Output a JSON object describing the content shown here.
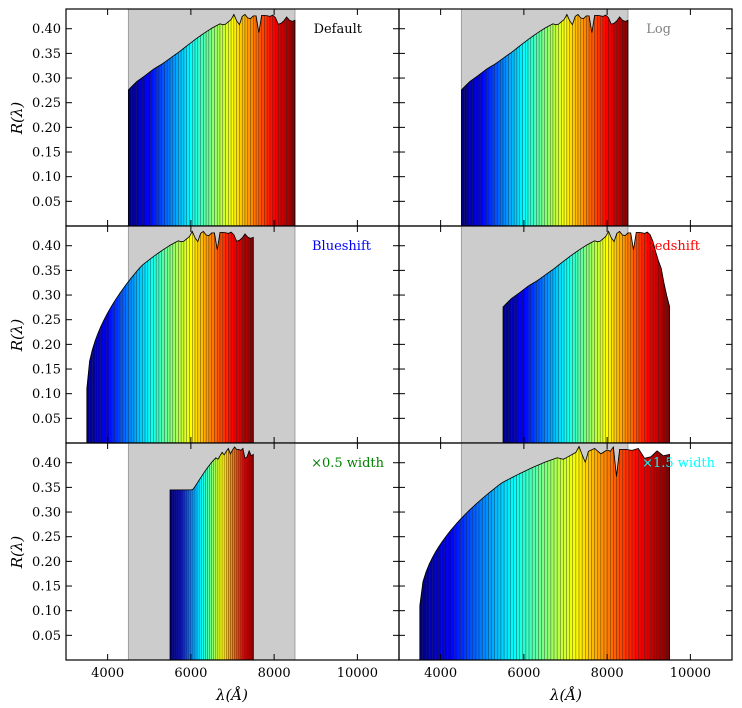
{
  "chart_data": {
    "type": "area",
    "layout": "3x2 grid of panels sharing x and y axes",
    "xlabel": "λ(Å)",
    "ylabel": "R(λ)",
    "xlim": [
      3000,
      11000
    ],
    "ylim": [
      0.0,
      0.44
    ],
    "xticks": [
      4000,
      6000,
      8000,
      10000
    ],
    "xtick_labels": [
      "4000",
      "6000",
      "8000",
      "10000"
    ],
    "yticks": [
      0.05,
      0.1,
      0.15,
      0.2,
      0.25,
      0.3,
      0.35,
      0.4
    ],
    "ytick_labels": [
      "0.05",
      "0.10",
      "0.15",
      "0.20",
      "0.25",
      "0.30",
      "0.35",
      "0.40"
    ],
    "grid": false,
    "colormap": "jet (blue at short wavelength to red at long wavelength)",
    "shaded_band_color": "#cccccc",
    "base_curve": {
      "description": "Reference response curve R(λ) for the default filter, sampled in Å",
      "x": [
        4500,
        4700,
        4900,
        5100,
        5300,
        5500,
        5700,
        5900,
        6100,
        6300,
        6500,
        6700,
        6800,
        6900,
        7000,
        7050,
        7100,
        7150,
        7200,
        7300,
        7400,
        7500,
        7550,
        7600,
        7650,
        7700,
        7800,
        7900,
        8000,
        8100,
        8200,
        8300,
        8400,
        8500
      ],
      "y": [
        0.276,
        0.293,
        0.305,
        0.318,
        0.328,
        0.34,
        0.352,
        0.365,
        0.378,
        0.39,
        0.401,
        0.41,
        0.407,
        0.414,
        0.421,
        0.433,
        0.416,
        0.401,
        0.423,
        0.429,
        0.418,
        0.426,
        0.423,
        0.432,
        0.372,
        0.427,
        0.427,
        0.425,
        0.429,
        0.409,
        0.412,
        0.424,
        0.414,
        0.417
      ]
    },
    "panels": [
      {
        "label": "Default",
        "label_color": "#000000",
        "band": [
          4500,
          8500
        ],
        "x_range": [
          4500,
          8500
        ]
      },
      {
        "label": "Log",
        "label_color": "#808080",
        "band": [
          4500,
          8500
        ],
        "x_range": [
          4500,
          8500
        ]
      },
      {
        "label": "Blueshift",
        "label_color": "#0000ff",
        "band": [
          4500,
          8500
        ],
        "x_range": [
          3500,
          7500
        ]
      },
      {
        "label": "Redshift",
        "label_color": "#ff0000",
        "band": [
          4500,
          8500
        ],
        "x_range": [
          5500,
          9500
        ]
      },
      {
        "label": "×0.5 width",
        "label_color": "#008000",
        "band": [
          4500,
          8500
        ],
        "x_range": [
          5500,
          7500
        ]
      },
      {
        "label": "×1.5 width",
        "label_color": "#00ffff",
        "band": [
          4500,
          8500
        ],
        "x_range": [
          3500,
          9500
        ]
      }
    ]
  }
}
